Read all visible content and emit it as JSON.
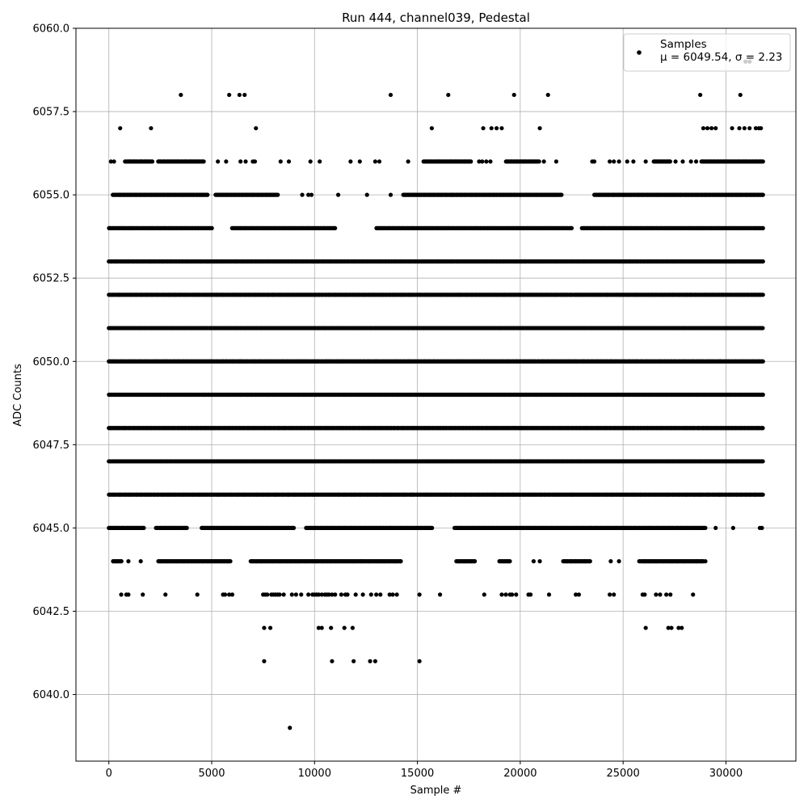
{
  "chart_data": {
    "type": "scatter",
    "title": "Run 444, channel039, Pedestal",
    "xlabel": "Sample #",
    "ylabel": "ADC Counts",
    "xlim": [
      -1600,
      33400
    ],
    "ylim": [
      6038.0,
      6060.0
    ],
    "x_ticks": [
      0,
      5000,
      10000,
      15000,
      20000,
      25000,
      30000
    ],
    "x_tick_labels": [
      "0",
      "5000",
      "10000",
      "15000",
      "20000",
      "25000",
      "30000"
    ],
    "y_ticks": [
      6040.0,
      6042.5,
      6045.0,
      6047.5,
      6050.0,
      6052.5,
      6055.0,
      6057.5,
      6060.0
    ],
    "y_tick_labels": [
      "6040.0",
      "6042.5",
      "6045.0",
      "6047.5",
      "6050.0",
      "6052.5",
      "6055.0",
      "6057.5",
      "6060.0"
    ],
    "grid": true,
    "legend_position": "top-right",
    "marker_color": "#000000",
    "series": [
      {
        "name": "Samples",
        "stats_label_prefix": "μ = 6049.54, σ = 2.23",
        "n_samples": 31800,
        "x_range": [
          0,
          31800
        ],
        "levels": [
          {
            "y": 6039,
            "x": [
              8800
            ]
          },
          {
            "y": 6041,
            "x": [
              7550,
              10850,
              11900,
              12700,
              12950,
              15100
            ]
          },
          {
            "y": 6042,
            "x": [
              7550,
              7850,
              10200,
              10350,
              10800,
              11450,
              11850,
              26100,
              27200,
              27350,
              27700,
              27850
            ]
          },
          {
            "y": 6043,
            "x": [
              600,
              850,
              950,
              1650,
              2750,
              4300,
              5550,
              5650,
              5850,
              6000,
              7500,
              7600,
              7700,
              7900,
              8000,
              8100,
              8200,
              8300,
              8500,
              8900,
              9100,
              9350,
              9700,
              9900,
              10000,
              10100,
              10200,
              10350,
              10500,
              10600,
              10700,
              10850,
              11000,
              11300,
              11500,
              11600,
              12000,
              12350,
              12750,
              13000,
              13200,
              13650,
              13800,
              14000,
              15100,
              16100,
              18250,
              19100,
              19300,
              19500,
              19600,
              19800,
              20400,
              20500,
              21400,
              22700,
              22850,
              24350,
              24550,
              25950,
              26050,
              26600,
              26800,
              27100,
              27300,
              28400
            ]
          },
          {
            "y": 6044,
            "x_fill": [
              [
                200,
                600
              ],
              [
                2400,
                5900
              ],
              [
                6900,
                14200
              ],
              [
                16900,
                17800
              ],
              [
                19000,
                19500
              ],
              [
                22100,
                23400
              ],
              [
                25800,
                28900
              ]
            ],
            "x": [
              950,
              1550,
              20650,
              20950,
              24400,
              24800,
              29000
            ]
          },
          {
            "y": 6045,
            "x_fill": [
              [
                0,
                1700
              ],
              [
                2300,
                3800
              ],
              [
                4500,
                9000
              ],
              [
                9600,
                15700
              ],
              [
                16800,
                29000
              ]
            ],
            "x": [
              29500,
              30350,
              31650,
              31750
            ]
          },
          {
            "y": 6046,
            "x_fill": [
              [
                0,
                31800
              ]
            ]
          },
          {
            "y": 6047,
            "x_fill": [
              [
                0,
                31800
              ]
            ]
          },
          {
            "y": 6048,
            "x_fill": [
              [
                0,
                31800
              ]
            ]
          },
          {
            "y": 6049,
            "x_fill": [
              [
                0,
                31800
              ]
            ]
          },
          {
            "y": 6050,
            "x_fill": [
              [
                0,
                31800
              ]
            ]
          },
          {
            "y": 6051,
            "x_fill": [
              [
                0,
                31800
              ]
            ]
          },
          {
            "y": 6052,
            "x_fill": [
              [
                0,
                31800
              ]
            ]
          },
          {
            "y": 6053,
            "x_fill": [
              [
                0,
                31800
              ]
            ]
          },
          {
            "y": 6054,
            "x_fill": [
              [
                0,
                5000
              ],
              [
                6000,
                11000
              ],
              [
                13000,
                22500
              ],
              [
                23000,
                31800
              ]
            ]
          },
          {
            "y": 6055,
            "x_fill": [
              [
                200,
                4800
              ],
              [
                5200,
                8200
              ],
              [
                14300,
                22000
              ],
              [
                23600,
                31800
              ]
            ],
            "x": [
              9400,
              9700,
              9850,
              11150,
              12550,
              13700
            ]
          },
          {
            "y": 6056,
            "x_fill": [
              [
                800,
                2100
              ],
              [
                2400,
                4600
              ],
              [
                15300,
                17600
              ],
              [
                19300,
                20900
              ],
              [
                26500,
                27300
              ],
              [
                28800,
                31800
              ]
            ],
            "x": [
              100,
              250,
              5300,
              5700,
              6400,
              6650,
              7000,
              7100,
              8350,
              8750,
              9800,
              10250,
              11750,
              12200,
              12950,
              13150,
              14550,
              18000,
              18150,
              18350,
              18550,
              21150,
              21750,
              23500,
              23600,
              24350,
              24550,
              24800,
              25200,
              25500,
              26100,
              27550,
              27900,
              28300,
              28550
            ]
          },
          {
            "y": 6057,
            "x": [
              550,
              2050,
              7150,
              15700,
              18200,
              18600,
              18850,
              19100,
              20950,
              28900,
              29100,
              29300,
              29500,
              30300,
              30650,
              30900,
              31150,
              31450,
              31600,
              31700
            ]
          },
          {
            "y": 6058,
            "x": [
              3500,
              5850,
              6350,
              6600,
              13700,
              16500,
              19700,
              21350,
              28750,
              30700
            ]
          },
          {
            "y": 6059,
            "x": [
              30950,
              31150
            ]
          }
        ]
      }
    ]
  }
}
